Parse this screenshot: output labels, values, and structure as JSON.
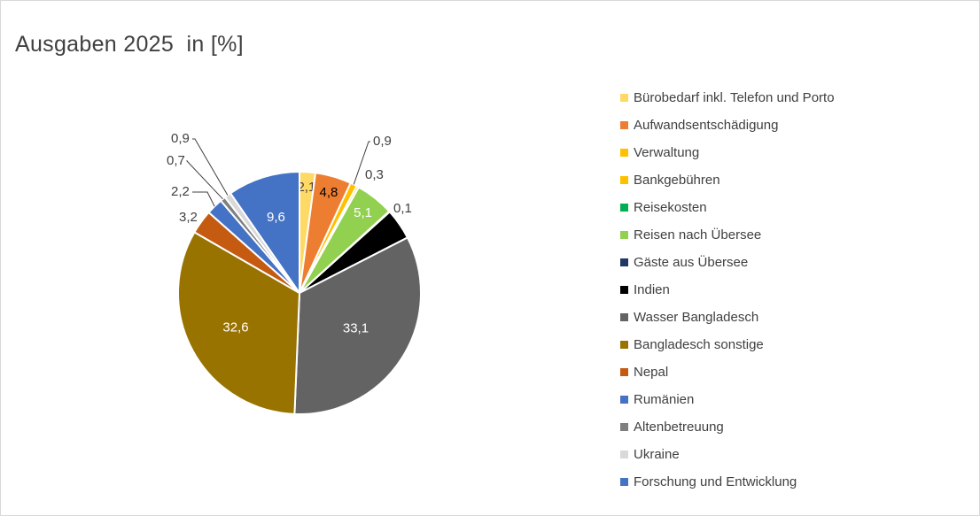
{
  "chart_data": {
    "type": "pie",
    "title": "Ausgaben 2025  in [%]",
    "legend_position": "right",
    "slices": [
      {
        "label": "Bürobedarf inkl. Telefon und Porto",
        "value": 2.1,
        "display": "2,1",
        "color": "#FFD966"
      },
      {
        "label": "Aufwandsentschädigung",
        "value": 4.8,
        "display": "4,8",
        "color": "#ED7D31"
      },
      {
        "label": "Verwaltung",
        "value": 0.9,
        "display": "0,9",
        "color": "#FFC000"
      },
      {
        "label": "Bankgebühren",
        "value": 0.3,
        "display": "0,3",
        "color": "#FFC000"
      },
      {
        "label": "Reisekosten",
        "value": 0.0,
        "display": "",
        "color": "#00B050"
      },
      {
        "label": "Reisen nach Übersee",
        "value": 5.1,
        "display": "5,1",
        "color": "#92D050"
      },
      {
        "label": "Gäste aus Übersee",
        "value": 0.1,
        "display": "0,1",
        "color": "#1F3864"
      },
      {
        "label": "Indien",
        "value": 4.1,
        "display": "",
        "color": "#000000"
      },
      {
        "label": "Wasser Bangladesch",
        "value": 33.1,
        "display": "33,1",
        "color": "#636363"
      },
      {
        "label": "Bangladesch sonstige",
        "value": 32.6,
        "display": "32,6",
        "color": "#997300"
      },
      {
        "label": "Nepal",
        "value": 3.2,
        "display": "3,2",
        "color": "#C55A11"
      },
      {
        "label": "Rumänien",
        "value": 2.2,
        "display": "2,2",
        "color": "#4472C4"
      },
      {
        "label": "Altenbetreuung",
        "value": 0.7,
        "display": "0,7",
        "color": "#7F7F7F"
      },
      {
        "label": "Ukraine",
        "value": 0.9,
        "display": "0,9",
        "color": "#D9D9D9"
      },
      {
        "label": "Forschung und Entwicklung",
        "value": 9.6,
        "display": "9,6",
        "color": "#4472C4"
      }
    ]
  }
}
